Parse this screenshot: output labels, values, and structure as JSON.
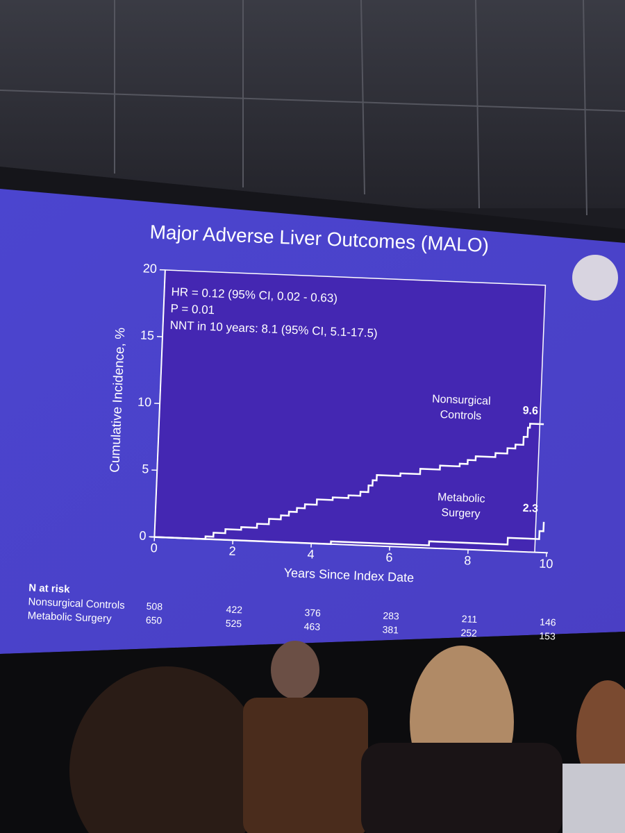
{
  "chart_data": {
    "type": "step",
    "title": "Major Adverse Liver Outcomes (MALO)",
    "x_label": "Years Since Index Date",
    "y_label": "Cumulative Incidence, %",
    "annotations": [
      "HR = 0.12 (95% CI, 0.02 - 0.63)",
      "P = 0.01",
      "NNT in 10 years: 8.1 (95% CI, 5.1-17.5)"
    ],
    "xlim": [
      0,
      10
    ],
    "xticks": [
      0,
      2,
      4,
      6,
      8,
      10
    ],
    "ylim": [
      0,
      20
    ],
    "yticks": [
      0,
      5,
      10,
      15,
      20
    ],
    "series": [
      {
        "name": "Nonsurgical Controls",
        "color": "#ffffff",
        "x": [
          0,
          1.3,
          1.5,
          1.8,
          2.2,
          2.6,
          2.9,
          3.2,
          3.4,
          3.6,
          3.8,
          4.1,
          4.5,
          4.9,
          5.2,
          5.4,
          5.5,
          5.6,
          6.2,
          6.7,
          7.2,
          7.7,
          7.9,
          8.1,
          8.6,
          8.9,
          9.1,
          9.3,
          9.4,
          9.45,
          9.8
        ],
        "values": [
          0,
          0.2,
          0.5,
          0.8,
          1.0,
          1.3,
          1.7,
          2.0,
          2.3,
          2.6,
          2.9,
          3.3,
          3.5,
          3.7,
          4.0,
          4.5,
          4.9,
          5.3,
          5.5,
          5.9,
          6.2,
          6.4,
          6.7,
          7.0,
          7.3,
          7.7,
          8.0,
          8.6,
          9.3,
          9.6,
          9.6
        ]
      },
      {
        "name": "Metabolic Surgery",
        "color": "#ffffff",
        "x": [
          0,
          4.5,
          7.0,
          9.0,
          9.8,
          9.9
        ],
        "values": [
          0,
          0.2,
          0.5,
          1.0,
          1.6,
          2.3
        ]
      }
    ],
    "risk_table": {
      "title": "N at risk",
      "counts": [
        [
          508,
          422,
          376,
          283,
          211,
          146
        ],
        [
          650,
          525,
          463,
          381,
          252,
          153
        ]
      ]
    }
  }
}
